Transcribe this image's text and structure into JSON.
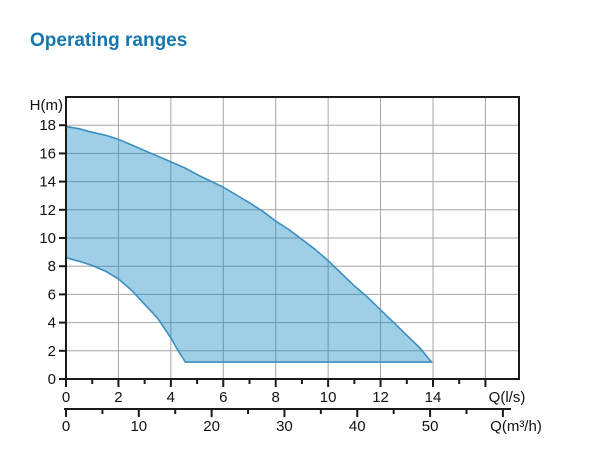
{
  "page": {
    "title": "Operating ranges",
    "title_color": "#1577b0",
    "background": "#ffffff"
  },
  "chart_data": {
    "type": "area",
    "title": "Operating ranges",
    "grid": {
      "show": true,
      "color": "#a6a6a6",
      "x_step_l_s": 2,
      "y_step_m": 2
    },
    "frame_color": "#1a1a1a",
    "text_color": "#111111",
    "y_axis": {
      "label": "H(m)",
      "min": 0,
      "max": 20,
      "tick_step": 2,
      "tick_labels": [
        "0",
        "2",
        "4",
        "6",
        "8",
        "10",
        "12",
        "14",
        "16",
        "18"
      ]
    },
    "x_axis_primary": {
      "label": "Q(l/s)",
      "min": 0,
      "max": 17.3,
      "major_tick_step": 2,
      "minor_tick_step": 1,
      "last_major_tick": 16,
      "tick_labels": [
        "0",
        "2",
        "4",
        "6",
        "8",
        "10",
        "12",
        "14"
      ]
    },
    "x_axis_secondary": {
      "label": "Q(m³/h)",
      "min": 0,
      "max": 60,
      "major_tick_step": 10,
      "minor_tick_step": 5,
      "tick_labels": [
        "0",
        "10",
        "20",
        "30",
        "40",
        "50"
      ],
      "conversion": "1 l/s = 3.6 m³/h"
    },
    "series": [
      {
        "name": "operating-range-envelope",
        "fill_rgba": "rgba(2,128,190,0.38)",
        "stroke": "#3c8ebf",
        "stroke_width": 1.6,
        "upper_curve_Q_H": [
          [
            0,
            17.9
          ],
          [
            0.5,
            17.75
          ],
          [
            1,
            17.5
          ],
          [
            1.5,
            17.3
          ],
          [
            2,
            17.0
          ],
          [
            2.5,
            16.6
          ],
          [
            3,
            16.2
          ],
          [
            3.5,
            15.8
          ],
          [
            4,
            15.4
          ],
          [
            4.5,
            15.0
          ],
          [
            5,
            14.5
          ],
          [
            5.5,
            14.05
          ],
          [
            6,
            13.6
          ],
          [
            6.5,
            13.05
          ],
          [
            7,
            12.5
          ],
          [
            7.5,
            11.9
          ],
          [
            8,
            11.2
          ],
          [
            8.5,
            10.6
          ],
          [
            9,
            9.9
          ],
          [
            9.5,
            9.2
          ],
          [
            10,
            8.4
          ],
          [
            10.5,
            7.5
          ],
          [
            11,
            6.6
          ],
          [
            11.5,
            5.8
          ],
          [
            12,
            4.9
          ],
          [
            12.5,
            4.0
          ],
          [
            13,
            3.1
          ],
          [
            13.5,
            2.2
          ],
          [
            13.95,
            1.2
          ]
        ],
        "lower_curve_Q_H": [
          [
            0,
            8.6
          ],
          [
            0.5,
            8.35
          ],
          [
            1,
            8.05
          ],
          [
            1.5,
            7.65
          ],
          [
            2,
            7.1
          ],
          [
            2.5,
            6.3
          ],
          [
            3,
            5.3
          ],
          [
            3.25,
            4.8
          ],
          [
            3.5,
            4.3
          ],
          [
            3.75,
            3.6
          ],
          [
            4,
            2.9
          ],
          [
            4.25,
            2.1
          ],
          [
            4.5,
            1.35
          ],
          [
            4.55,
            1.2
          ]
        ],
        "flat_bottom_H": 1.2,
        "tip_Q_l_s": 13.95
      }
    ]
  }
}
